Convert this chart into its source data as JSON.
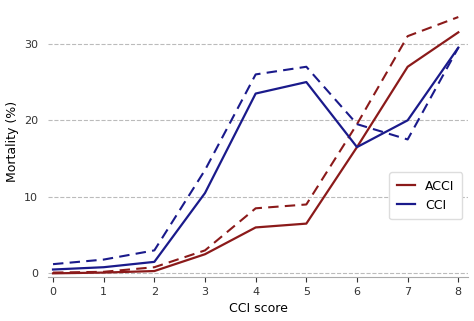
{
  "title": "",
  "xlabel": "CCI score",
  "ylabel": "Mortality (%)",
  "xlim": [
    -0.1,
    8.2
  ],
  "ylim": [
    -0.5,
    35
  ],
  "yticks": [
    0,
    10,
    20,
    30
  ],
  "xticks": [
    0,
    1,
    2,
    3,
    4,
    5,
    6,
    7,
    8
  ],
  "acci_solid_x": [
    0,
    1,
    2,
    3,
    4,
    5,
    6,
    7,
    8
  ],
  "acci_solid_y": [
    0,
    0.1,
    0.3,
    2.5,
    6.0,
    6.5,
    16.5,
    27.0,
    31.5
  ],
  "acci_dashed_x": [
    0,
    1,
    2,
    3,
    4,
    5,
    6,
    7,
    8
  ],
  "acci_dashed_y": [
    0.1,
    0.2,
    0.8,
    3.0,
    8.5,
    9.0,
    19.5,
    31.0,
    33.5
  ],
  "cci_solid_x": [
    0,
    1,
    2,
    3,
    4,
    5,
    6,
    7,
    8
  ],
  "cci_solid_y": [
    0.5,
    0.8,
    1.5,
    10.5,
    23.5,
    25.0,
    16.5,
    20.0,
    29.5
  ],
  "cci_dashed_x": [
    0,
    1,
    2,
    3,
    4,
    5,
    6,
    7,
    8
  ],
  "cci_dashed_y": [
    1.2,
    1.8,
    3.0,
    13.5,
    26.0,
    27.0,
    19.5,
    17.5,
    29.5
  ],
  "acci_color": "#8B1A1A",
  "cci_color": "#1A1A8B",
  "background_color": "#ffffff",
  "grid_color": "#bbbbbb",
  "linewidth": 1.6,
  "dashed_linewidth": 1.5,
  "legend_labels": [
    "ACCI",
    "CCI"
  ],
  "legend_fontsize": 9,
  "axis_fontsize": 9,
  "tick_fontsize": 8
}
